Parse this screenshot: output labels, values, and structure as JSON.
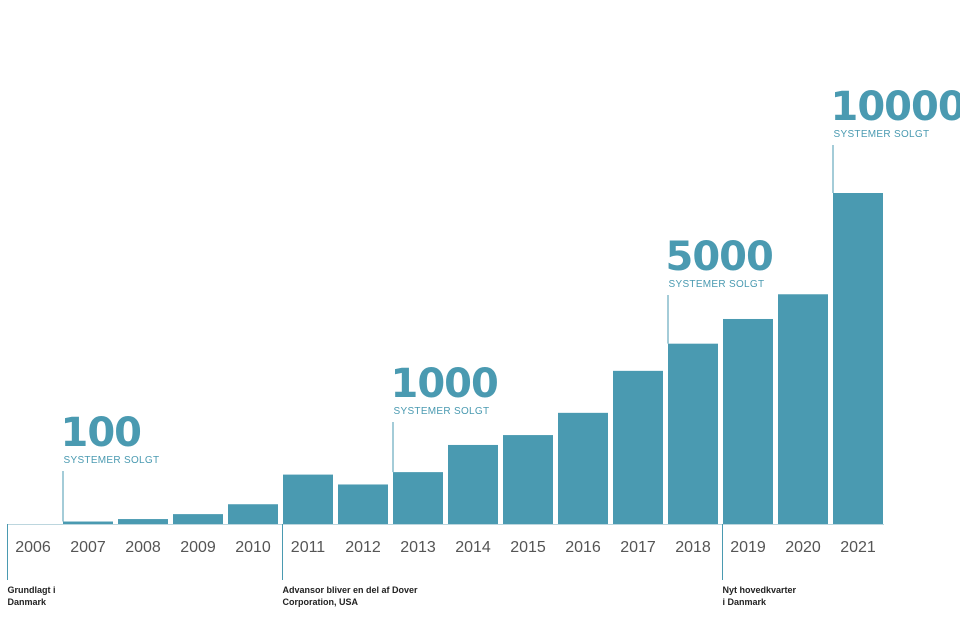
{
  "chart_data": {
    "type": "bar",
    "categories": [
      "2006",
      "2007",
      "2008",
      "2009",
      "2010",
      "2011",
      "2012",
      "2013",
      "2014",
      "2015",
      "2016",
      "2017",
      "2018",
      "2019",
      "2020",
      "2021"
    ],
    "values": [
      0,
      1,
      2,
      4,
      8,
      20,
      16,
      21,
      32,
      36,
      45,
      62,
      73,
      83,
      93,
      134
    ],
    "title": "",
    "xlabel": "",
    "ylabel": "",
    "ylim": [
      0,
      134
    ],
    "grid": false,
    "color": "#4a9ab1",
    "milestones": [
      {
        "category": "2007",
        "value": "100",
        "label": "SYSTEMER SOLGT"
      },
      {
        "category": "2013",
        "value": "1000",
        "label": "SYSTEMER SOLGT"
      },
      {
        "category": "2018",
        "value": "5000",
        "label": "SYSTEMER SOLGT"
      },
      {
        "category": "2021",
        "value": "10000",
        "label": "SYSTEMER SOLGT"
      }
    ],
    "events": [
      {
        "category": "2006",
        "lines": [
          "Grundlagt i",
          "Danmark"
        ]
      },
      {
        "category": "2011",
        "lines": [
          "Advansor bliver en del af Dover",
          "Corporation, USA"
        ]
      },
      {
        "category": "2019",
        "lines": [
          "Nyt hovedkvarter",
          "i Danmark"
        ]
      }
    ]
  }
}
